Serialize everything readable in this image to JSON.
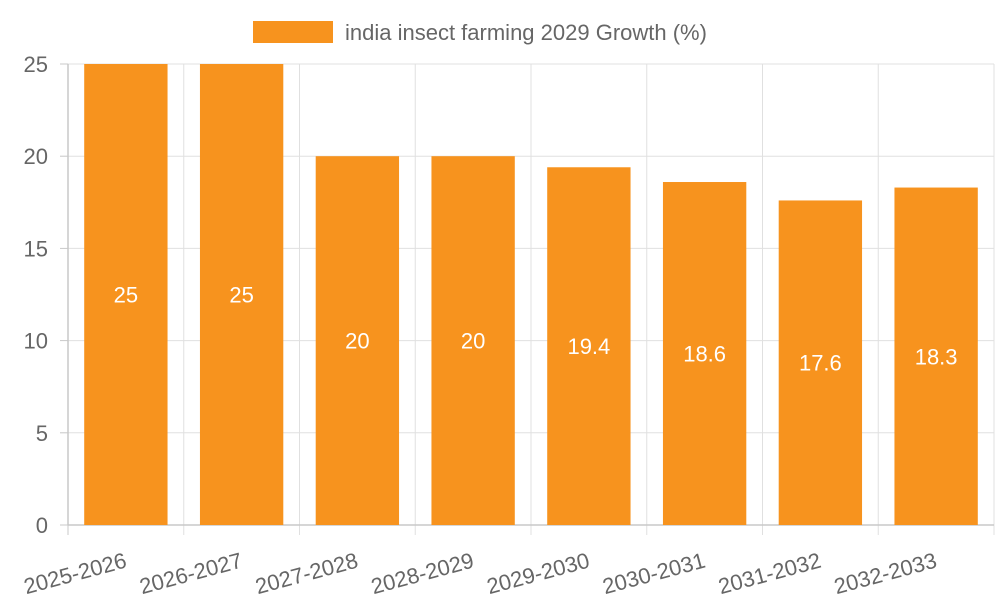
{
  "chart_data": {
    "type": "bar",
    "categories": [
      "2025-2026",
      "2026-2027",
      "2027-2028",
      "2028-2029",
      "2029-2030",
      "2030-2031",
      "2031-2032",
      "2032-2033"
    ],
    "series": [
      {
        "name": "india insect farming 2029 Growth (%)",
        "values": [
          25,
          25,
          20,
          20,
          19.4,
          18.6,
          17.6,
          18.3
        ],
        "color": "#F7931E"
      }
    ],
    "data_labels": [
      "25",
      "25",
      "20",
      "20",
      "19.4",
      "18.6",
      "17.6",
      "18.3"
    ],
    "title": "",
    "xlabel": "",
    "ylabel": "",
    "ylim": [
      0,
      25
    ],
    "yticks": [
      0,
      5,
      10,
      15,
      20,
      25
    ],
    "ytick_labels": [
      "0",
      "5",
      "10",
      "15",
      "20",
      "25"
    ],
    "grid": true,
    "legend_position": "top-center",
    "gridline_color": "#e0e0e0",
    "axis_color": "#c8c8c8",
    "label_color": "#666666",
    "data_label_color": "#ffffff"
  }
}
